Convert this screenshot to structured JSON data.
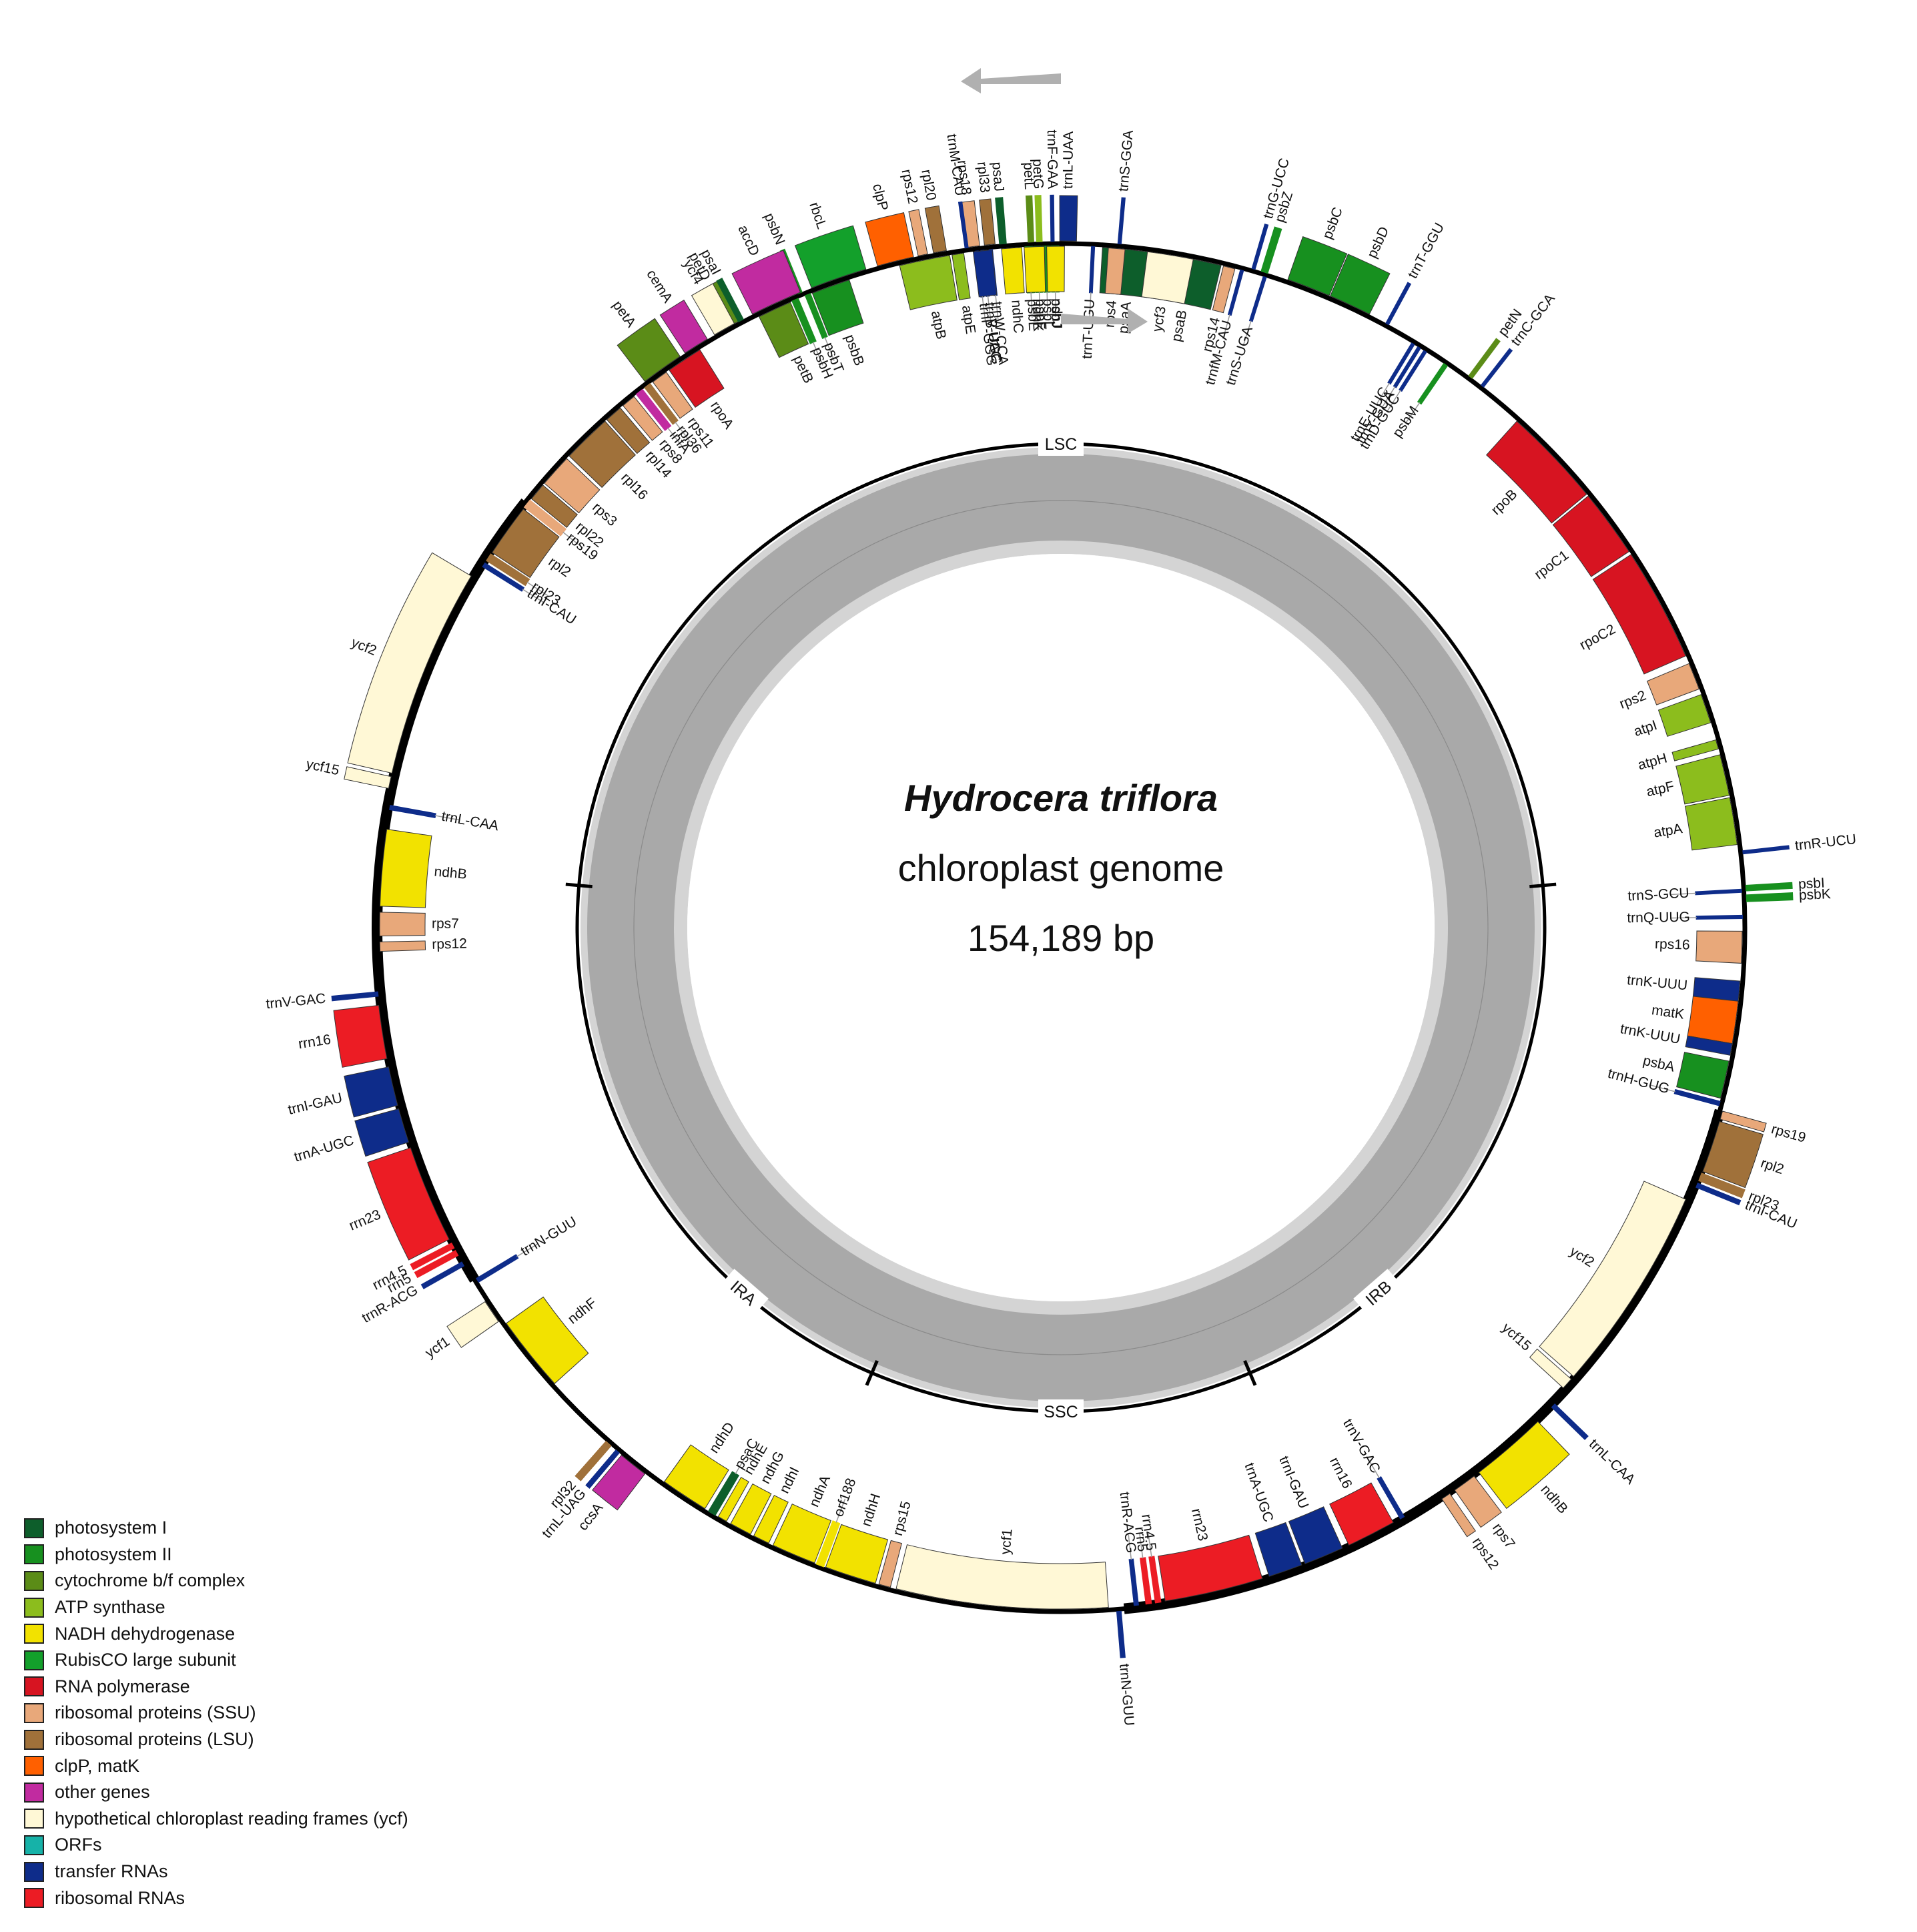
{
  "title": {
    "species": "Hydrocera triflora",
    "subtitle": "chloroplast genome",
    "size": "154,189 bp"
  },
  "regions": [
    "LSC",
    "IRB",
    "SSC",
    "IRA"
  ],
  "colors": {
    "ps1": "#0d5e2b",
    "ps2": "#17901f",
    "cytb": "#5b8c17",
    "atp": "#8cbd1d",
    "ndh": "#f2e200",
    "rbcl": "#13a02b",
    "rnapol": "#d71421",
    "ssu": "#e8a87a",
    "lsu": "#a0713a",
    "clp": "#ff6000",
    "other": "#c12ba0",
    "ycf": "#fff8d6",
    "orf": "#16b2a8",
    "trna": "#0e2c8a",
    "rrna": "#ec1c24"
  },
  "legend": [
    {
      "key": "ps1",
      "label": "photosystem I"
    },
    {
      "key": "ps2",
      "label": "photosystem II"
    },
    {
      "key": "cytb",
      "label": "cytochrome b/f complex"
    },
    {
      "key": "atp",
      "label": "ATP synthase"
    },
    {
      "key": "ndh",
      "label": "NADH dehydrogenase"
    },
    {
      "key": "rbcl",
      "label": "RubisCO large subunit"
    },
    {
      "key": "rnapol",
      "label": "RNA polymerase"
    },
    {
      "key": "ssu",
      "label": "ribosomal proteins (SSU)"
    },
    {
      "key": "lsu",
      "label": "ribosomal proteins (LSU)"
    },
    {
      "key": "clp",
      "label": "clpP, matK"
    },
    {
      "key": "other",
      "label": "other genes"
    },
    {
      "key": "ycf",
      "label": "hypothetical chloroplast reading frames (ycf)"
    },
    {
      "key": "orf",
      "label": "ORFs"
    },
    {
      "key": "trna",
      "label": "transfer RNAs"
    },
    {
      "key": "rrna",
      "label": "ribosomal RNAs"
    }
  ],
  "genes": [
    {
      "name": "psaA",
      "type": "ps1",
      "a0": 3.5,
      "a1": 8.6,
      "side": "in"
    },
    {
      "name": "psaB",
      "type": "ps1",
      "a0": 8.8,
      "a1": 13.6,
      "side": "in"
    },
    {
      "name": "rps14",
      "type": "ssu",
      "a0": 13.8,
      "a1": 14.8,
      "side": "in"
    },
    {
      "name": "trnfM-CAU",
      "type": "trna",
      "a0": 15.3,
      "a1": 15.5,
      "side": "in"
    },
    {
      "name": "trnS-UGA",
      "type": "trna",
      "a0": 17.3,
      "a1": 17.5,
      "side": "in"
    },
    {
      "name": "trnG-UCC",
      "type": "trna",
      "a0": 16.2,
      "a1": 16.4,
      "side": "out"
    },
    {
      "name": "psbZ",
      "type": "ps2",
      "a0": 17.0,
      "a1": 17.5,
      "side": "out"
    },
    {
      "name": "psbC",
      "type": "ps2",
      "a0": 19.3,
      "a1": 23.0,
      "side": "out"
    },
    {
      "name": "psbD",
      "type": "ps2",
      "a0": 23.1,
      "a1": 26.7,
      "side": "out"
    },
    {
      "name": "trnT-GGU",
      "type": "trna",
      "a0": 28.3,
      "a1": 28.5,
      "side": "out"
    },
    {
      "name": "trnE-UUC",
      "type": "trna",
      "a0": 31.0,
      "a1": 31.2,
      "side": "in"
    },
    {
      "name": "trnY-GUA",
      "type": "trna",
      "a0": 31.6,
      "a1": 31.8,
      "side": "in"
    },
    {
      "name": "trnD-GUC",
      "type": "trna",
      "a0": 32.2,
      "a1": 32.4,
      "side": "in"
    },
    {
      "name": "psbM",
      "type": "ps2",
      "a0": 34.2,
      "a1": 34.5,
      "side": "in"
    },
    {
      "name": "petN",
      "type": "cytb",
      "a0": 36.5,
      "a1": 36.8,
      "side": "out"
    },
    {
      "name": "trnC-GCA",
      "type": "trna",
      "a0": 37.8,
      "a1": 38.0,
      "side": "out"
    },
    {
      "name": "rpoB",
      "type": "rnapol",
      "a0": 42.0,
      "a1": 50.5,
      "side": "in"
    },
    {
      "name": "rpoC1",
      "type": "rnapol",
      "a0": 50.7,
      "a1": 56.5,
      "side": "in"
    },
    {
      "name": "rpoC2",
      "type": "rnapol",
      "a0": 56.8,
      "a1": 66.5,
      "side": "in"
    },
    {
      "name": "rps2",
      "type": "ssu",
      "a0": 67.2,
      "a1": 69.5,
      "side": "in"
    },
    {
      "name": "atpI",
      "type": "atp",
      "a0": 70.0,
      "a1": 72.5,
      "side": "in"
    },
    {
      "name": "atpH",
      "type": "atp",
      "a0": 74.0,
      "a1": 74.8,
      "side": "in"
    },
    {
      "name": "atpF",
      "type": "atp",
      "a0": 75.3,
      "a1": 78.8,
      "side": "in"
    },
    {
      "name": "atpA",
      "type": "atp",
      "a0": 79.0,
      "a1": 83.0,
      "side": "in"
    },
    {
      "name": "trnR-UCU",
      "type": "trna",
      "a0": 83.6,
      "a1": 83.8,
      "side": "out"
    },
    {
      "name": "psbI",
      "type": "ps2",
      "a0": 86.5,
      "a1": 86.9,
      "side": "out"
    },
    {
      "name": "psbK",
      "type": "ps2",
      "a0": 87.3,
      "a1": 87.8,
      "side": "out"
    },
    {
      "name": "trnS-GCU",
      "type": "trna",
      "a0": 86.8,
      "a1": 87.0,
      "side": "in"
    },
    {
      "name": "trnQ-UUG",
      "type": "trna",
      "a0": 89.0,
      "a1": 89.2,
      "side": "in"
    },
    {
      "name": "rps16",
      "type": "ssu",
      "a0": 90.3,
      "a1": 93.0,
      "side": "in"
    },
    {
      "name": "trnK-UUU",
      "type": "trna",
      "a0": 94.5,
      "a1": 96.2,
      "side": "in"
    },
    {
      "name": "matK",
      "type": "clp",
      "a0": 96.2,
      "a1": 99.8,
      "side": "in"
    },
    {
      "name": "trnK-UUU-2",
      "type": "trna",
      "a0": 99.8,
      "a1": 100.8,
      "side": "in"
    },
    {
      "name": "psbA",
      "type": "ps2",
      "a0": 101.3,
      "a1": 104.5,
      "side": "in"
    },
    {
      "name": "trnH-GUG",
      "type": "trna",
      "a0": 104.8,
      "a1": 105.1,
      "side": "in"
    },
    {
      "name": "rps19",
      "type": "ssu",
      "a0": 105.5,
      "a1": 106.2,
      "side": "out"
    },
    {
      "name": "rpl2",
      "type": "lsu",
      "a0": 106.4,
      "a1": 110.8,
      "side": "out"
    },
    {
      "name": "rpl23",
      "type": "lsu",
      "a0": 111.0,
      "a1": 111.6,
      "side": "out"
    },
    {
      "name": "trnI-CAU",
      "type": "trna",
      "a0": 111.9,
      "a1": 112.2,
      "side": "out"
    },
    {
      "name": "ycf2",
      "type": "ycf",
      "a0": 113.5,
      "a1": 131.2,
      "side": "in"
    },
    {
      "name": "ycf15",
      "type": "ycf",
      "a0": 131.5,
      "a1": 132.5,
      "side": "in"
    },
    {
      "name": "trnL-CAA",
      "type": "trna",
      "a0": 134.0,
      "a1": 134.3,
      "side": "out"
    },
    {
      "name": "ndhB",
      "type": "ndh",
      "a0": 136.0,
      "a1": 142.5,
      "side": "out"
    },
    {
      "name": "rps7",
      "type": "ssu",
      "a0": 143.0,
      "a1": 145.0,
      "side": "out"
    },
    {
      "name": "rps12",
      "type": "ssu",
      "a0": 145.5,
      "a1": 146.3,
      "side": "out"
    },
    {
      "name": "trnV-GAC",
      "type": "trna",
      "a0": 149.8,
      "a1": 150.1,
      "side": "in"
    },
    {
      "name": "rrn16",
      "type": "rrna",
      "a0": 150.8,
      "a1": 155.0,
      "side": "in"
    },
    {
      "name": "trnI-GAU",
      "type": "trna",
      "a0": 155.6,
      "a1": 159.0,
      "side": "in"
    },
    {
      "name": "trnA-UGC",
      "type": "trna",
      "a0": 159.3,
      "a1": 162.2,
      "side": "in"
    },
    {
      "name": "rrn23",
      "type": "rrna",
      "a0": 162.8,
      "a1": 171.2,
      "side": "in"
    },
    {
      "name": "rrn4.5",
      "type": "rrna",
      "a0": 171.6,
      "a1": 172.0,
      "side": "in"
    },
    {
      "name": "rrn5",
      "type": "rrna",
      "a0": 172.4,
      "a1": 172.8,
      "side": "in"
    },
    {
      "name": "trnR-ACG",
      "type": "trna",
      "a0": 173.5,
      "a1": 173.8,
      "side": "in"
    },
    {
      "name": "trnN-GUU",
      "type": "trna",
      "a0": 175.0,
      "a1": 175.3,
      "side": "out"
    },
    {
      "name": "ycf1",
      "type": "ycf",
      "a0": 176.0,
      "a1": 194.0,
      "side": "in"
    },
    {
      "name": "rps15",
      "type": "ssu",
      "a0": 194.5,
      "a1": 195.5,
      "side": "in"
    },
    {
      "name": "ndhH",
      "type": "ndh",
      "a0": 195.8,
      "a1": 200.2,
      "side": "in"
    },
    {
      "name": "orf188",
      "type": "ndh",
      "a0": 200.4,
      "a1": 201.0,
      "side": "in"
    },
    {
      "name": "ndhA",
      "type": "ndh",
      "a0": 201.2,
      "a1": 205.0,
      "side": "in"
    },
    {
      "name": "ndhI",
      "type": "ndh",
      "a0": 205.4,
      "a1": 206.8,
      "side": "in"
    },
    {
      "name": "ndhG",
      "type": "ndh",
      "a0": 207.1,
      "a1": 209.0,
      "side": "in"
    },
    {
      "name": "ndhE",
      "type": "ndh",
      "a0": 209.4,
      "a1": 210.2,
      "side": "in"
    },
    {
      "name": "psaC",
      "type": "ps1",
      "a0": 210.5,
      "a1": 211.1,
      "side": "in"
    },
    {
      "name": "ndhD",
      "type": "ndh",
      "a0": 211.5,
      "a1": 215.6,
      "side": "in"
    },
    {
      "name": "ccsA",
      "type": "other",
      "a0": 217.3,
      "a1": 219.8,
      "side": "out"
    },
    {
      "name": "trnL-UAG",
      "type": "trna",
      "a0": 220.1,
      "a1": 220.4,
      "side": "out"
    },
    {
      "name": "rpl32",
      "type": "lsu",
      "a0": 221.0,
      "a1": 221.5,
      "side": "out"
    },
    {
      "name": "ndhF",
      "type": "ndh",
      "a0": 228.0,
      "a1": 234.5,
      "side": "in"
    },
    {
      "name": "ycf1",
      "type": "ycf",
      "a0": 235.0,
      "a1": 237.0,
      "side": "out"
    },
    {
      "name": "trnN-GUU",
      "type": "trna",
      "a0": 238.7,
      "a1": 239.0,
      "side": "in"
    },
    {
      "name": "trnR-ACG",
      "type": "trna",
      "a0": 240.5,
      "a1": 240.8,
      "side": "out"
    },
    {
      "name": "rrn5",
      "type": "rrna",
      "a0": 241.5,
      "a1": 241.9,
      "side": "out"
    },
    {
      "name": "rrn4.5",
      "type": "rrna",
      "a0": 242.2,
      "a1": 242.6,
      "side": "out"
    },
    {
      "name": "rrn23",
      "type": "rrna",
      "a0": 243.0,
      "a1": 251.3,
      "side": "out"
    },
    {
      "name": "trnA-UGC",
      "type": "trna",
      "a0": 251.8,
      "a1": 254.7,
      "side": "out"
    },
    {
      "name": "trnI-GAU",
      "type": "trna",
      "a0": 255.0,
      "a1": 258.3,
      "side": "out"
    },
    {
      "name": "rrn16",
      "type": "rrna",
      "a0": 259.0,
      "a1": 263.5,
      "side": "out"
    },
    {
      "name": "trnV-GAC",
      "type": "trna",
      "a0": 264.3,
      "a1": 264.6,
      "side": "out"
    },
    {
      "name": "rps12",
      "type": "ssu",
      "a0": 268.0,
      "a1": 268.8,
      "side": "in"
    },
    {
      "name": "rps7",
      "type": "ssu",
      "a0": 269.3,
      "a1": 271.3,
      "side": "in"
    },
    {
      "name": "ndhB",
      "type": "ndh",
      "a0": 271.8,
      "a1": 278.3,
      "side": "in"
    },
    {
      "name": "trnL-CAA",
      "type": "trna",
      "a0": 280.0,
      "a1": 280.3,
      "side": "in"
    },
    {
      "name": "ycf15",
      "type": "ycf",
      "a0": 281.7,
      "a1": 282.7,
      "side": "out"
    },
    {
      "name": "ycf2",
      "type": "ycf",
      "a0": 283.0,
      "a1": 300.8,
      "side": "out"
    },
    {
      "name": "trnI-CAU",
      "type": "trna",
      "a0": 302.0,
      "a1": 302.3,
      "side": "in"
    },
    {
      "name": "rpl23",
      "type": "lsu",
      "a0": 302.6,
      "a1": 303.2,
      "side": "in"
    },
    {
      "name": "rpl2",
      "type": "lsu",
      "a0": 303.4,
      "a1": 307.9,
      "side": "in"
    },
    {
      "name": "rps19",
      "type": "ssu",
      "a0": 308.1,
      "a1": 308.8,
      "side": "in"
    },
    {
      "name": "rpl22",
      "type": "lsu",
      "a0": 309.0,
      "a1": 310.5,
      "side": "in"
    },
    {
      "name": "rps3",
      "type": "ssu",
      "a0": 310.7,
      "a1": 313.5,
      "side": "in"
    },
    {
      "name": "rpl16",
      "type": "lsu",
      "a0": 313.8,
      "a1": 318.0,
      "side": "in"
    },
    {
      "name": "rpl14",
      "type": "lsu",
      "a0": 318.2,
      "a1": 319.7,
      "side": "in"
    },
    {
      "name": "rps8",
      "type": "ssu",
      "a0": 320.0,
      "a1": 321.2,
      "side": "in"
    },
    {
      "name": "infA",
      "type": "other",
      "a0": 321.5,
      "a1": 322.1,
      "side": "in"
    },
    {
      "name": "rpl36",
      "type": "lsu",
      "a0": 322.4,
      "a1": 322.9,
      "side": "in"
    },
    {
      "name": "rps11",
      "type": "ssu",
      "a0": 323.2,
      "a1": 324.6,
      "side": "in"
    },
    {
      "name": "rpoA",
      "type": "rnapol",
      "a0": 324.9,
      "a1": 328.0,
      "side": "in"
    },
    {
      "name": "petD",
      "type": "cytb",
      "a0": 330.6,
      "a1": 332.0,
      "side": "out"
    },
    {
      "name": "petB",
      "type": "cytb",
      "a0": 333.7,
      "a1": 336.6,
      "side": "in"
    },
    {
      "name": "psbH",
      "type": "ps2",
      "a0": 336.8,
      "a1": 337.3,
      "side": "in"
    },
    {
      "name": "psbN",
      "type": "ps2",
      "a0": 337.5,
      "a1": 337.8,
      "side": "out"
    },
    {
      "name": "psbT",
      "type": "ps2",
      "a0": 338.0,
      "a1": 338.4,
      "side": "in"
    },
    {
      "name": "psbB",
      "type": "ps2",
      "a0": 338.6,
      "a1": 341.9,
      "side": "in"
    },
    {
      "name": "clpP",
      "type": "clp",
      "a0": 344.5,
      "a1": 347.6,
      "side": "out"
    },
    {
      "name": "rps12",
      "type": "ssu",
      "a0": 348.0,
      "a1": 348.8,
      "side": "out"
    },
    {
      "name": "rpl20",
      "type": "lsu",
      "a0": 349.3,
      "a1": 350.4,
      "side": "out"
    },
    {
      "name": "trnP-GGG",
      "type": "trna",
      "a0": 352.8,
      "a1": 353.0,
      "side": "in"
    },
    {
      "name": "trnP-UGG",
      "type": "trna",
      "a0": 353.3,
      "a1": 353.5,
      "side": "in"
    },
    {
      "name": "trnW-CCA",
      "type": "trna",
      "a0": 354.0,
      "a1": 354.2,
      "side": "in"
    },
    {
      "name": "rps18",
      "type": "ssu",
      "a0": 352.0,
      "a1": 353.2,
      "side": "out"
    },
    {
      "name": "rpl33",
      "type": "lsu",
      "a0": 353.6,
      "a1": 354.5,
      "side": "out"
    },
    {
      "name": "psaJ",
      "type": "ps1",
      "a0": 354.9,
      "a1": 355.4,
      "side": "out"
    },
    {
      "name": "psbE",
      "type": "ps2",
      "a0": 357.0,
      "a1": 357.6,
      "side": "in"
    },
    {
      "name": "psbF",
      "type": "ps2",
      "a0": 357.8,
      "a1": 358.3,
      "side": "in"
    },
    {
      "name": "psbL",
      "type": "ps2",
      "a0": 358.5,
      "a1": 359.0,
      "side": "in"
    },
    {
      "name": "psbJ",
      "type": "ps2",
      "a0": 359.2,
      "a1": 359.8,
      "side": "in"
    },
    {
      "name": "petL",
      "type": "cytb",
      "a0": 357.3,
      "a1": 357.7,
      "side": "out"
    },
    {
      "name": "petG",
      "type": "atp",
      "a0": 358.0,
      "a1": 358.4,
      "side": "out"
    }
  ],
  "genes_top": [
    {
      "name": "petA",
      "type": "cytb",
      "a0": 322.7,
      "a1": 326.3,
      "side": "out"
    },
    {
      "name": "cemA",
      "type": "other",
      "a0": 326.8,
      "a1": 329.0,
      "side": "out"
    },
    {
      "name": "ycf4",
      "type": "ycf",
      "a0": 329.7,
      "a1": 331.6,
      "side": "out"
    },
    {
      "name": "psaI",
      "type": "ps1",
      "a0": 332.0,
      "a1": 332.4,
      "side": "out"
    },
    {
      "name": "accD",
      "type": "other",
      "a0": 333.3,
      "a1": 337.7,
      "side": "out"
    },
    {
      "name": "rbcL",
      "type": "rbcl",
      "a0": 338.7,
      "a1": 343.5,
      "side": "out"
    },
    {
      "name": "atpB",
      "type": "atp",
      "a0": 346.3,
      "a1": 350.6,
      "side": "in"
    },
    {
      "name": "atpE",
      "type": "atp",
      "a0": 350.8,
      "a1": 351.8,
      "side": "in"
    },
    {
      "name": "trnM-CAU",
      "type": "trna",
      "a0": 352.0,
      "a1": 352.2,
      "side": "out"
    },
    {
      "name": "trnV-UAC",
      "type": "trna",
      "a0": 352.6,
      "a1": 354.2,
      "side": "in"
    },
    {
      "name": "ndhC",
      "type": "ndh",
      "a0": 355.0,
      "a1": 356.7,
      "side": "in"
    },
    {
      "name": "ndhK",
      "type": "ndh",
      "a0": 356.9,
      "a1": 358.6,
      "side": "in"
    },
    {
      "name": "ndhJ",
      "type": "ndh",
      "a0": 358.8,
      "a1": 360.3,
      "side": "in"
    },
    {
      "name": "trnF-GAA",
      "type": "trna",
      "a0": 359.2,
      "a1": 359.4,
      "side": "out"
    },
    {
      "name": "trnL-UAA",
      "type": "trna",
      "a0": 359.9,
      "a1": 361.3,
      "side": "out"
    },
    {
      "name": "trnT-UGU",
      "type": "trna",
      "a0": 362.6,
      "a1": 362.8,
      "side": "in"
    },
    {
      "name": "rps4",
      "type": "ssu",
      "a0": 364.0,
      "a1": 365.4,
      "side": "in"
    },
    {
      "name": "trnS-GGA",
      "type": "trna",
      "a0": 364.8,
      "a1": 365.0,
      "side": "out"
    },
    {
      "name": "ycf3",
      "type": "ycf",
      "a0": 367.3,
      "a1": 371.2,
      "side": "in"
    }
  ]
}
